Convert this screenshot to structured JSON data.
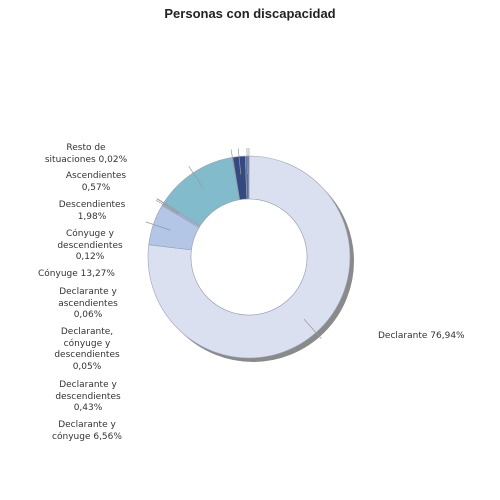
{
  "chart_data": {
    "type": "pie",
    "title": "Personas con discapacidad",
    "donut": true,
    "slices": [
      {
        "label": "Declarante",
        "pct_text": "76,94%",
        "value": 76.94,
        "color": "#dbe0f1"
      },
      {
        "label": "Declarante y cónyuge",
        "pct_text": "6,56%",
        "value": 6.56,
        "color": "#b3c6e5"
      },
      {
        "label": "Declarante y descendientes",
        "pct_text": "0,43%",
        "value": 0.43,
        "color": "#9fb3d6"
      },
      {
        "label": "Declarante, cónyuge y descendientes",
        "pct_text": "0,05%",
        "value": 0.05,
        "color": "#8fa9d0"
      },
      {
        "label": "Declarante y ascendientes",
        "pct_text": "0,06%",
        "value": 0.06,
        "color": "#a9bfe0"
      },
      {
        "label": "Cónyuge",
        "pct_text": "13,27%",
        "value": 13.27,
        "color": "#82bccc"
      },
      {
        "label": "Cónyuge y descendientes",
        "pct_text": "0,12%",
        "value": 0.12,
        "color": "#6aa6bb"
      },
      {
        "label": "Descendientes",
        "pct_text": "1,98%",
        "value": 1.98,
        "color": "#34497f"
      },
      {
        "label": "Ascendientes",
        "pct_text": "0,57%",
        "value": 0.57,
        "color": "#5a6f9f"
      },
      {
        "label": "Resto de situaciones",
        "pct_text": "0,02%",
        "value": 0.02,
        "color": "#c2cadb"
      }
    ]
  },
  "labels": {
    "declarante": "Declarante 76,94%",
    "declarante_conyuge": "Declarante y\ncónyuge 6,56%",
    "declarante_desc": "Declarante y\ndescendientes\n0,43%",
    "declarante_conyuge_desc": "Declarante,\ncónyuge y\ndescendientes\n0,05%",
    "declarante_asc": "Declarante y\nascendientes\n0,06%",
    "conyuge": "Cónyuge 13,27%",
    "conyuge_desc": "Cónyuge y\ndescendientes\n0,12%",
    "descendientes": "Descendientes\n1,98%",
    "ascendientes": "Ascendientes\n0,57%",
    "resto": "Resto de\nsituaciones 0,02%"
  }
}
